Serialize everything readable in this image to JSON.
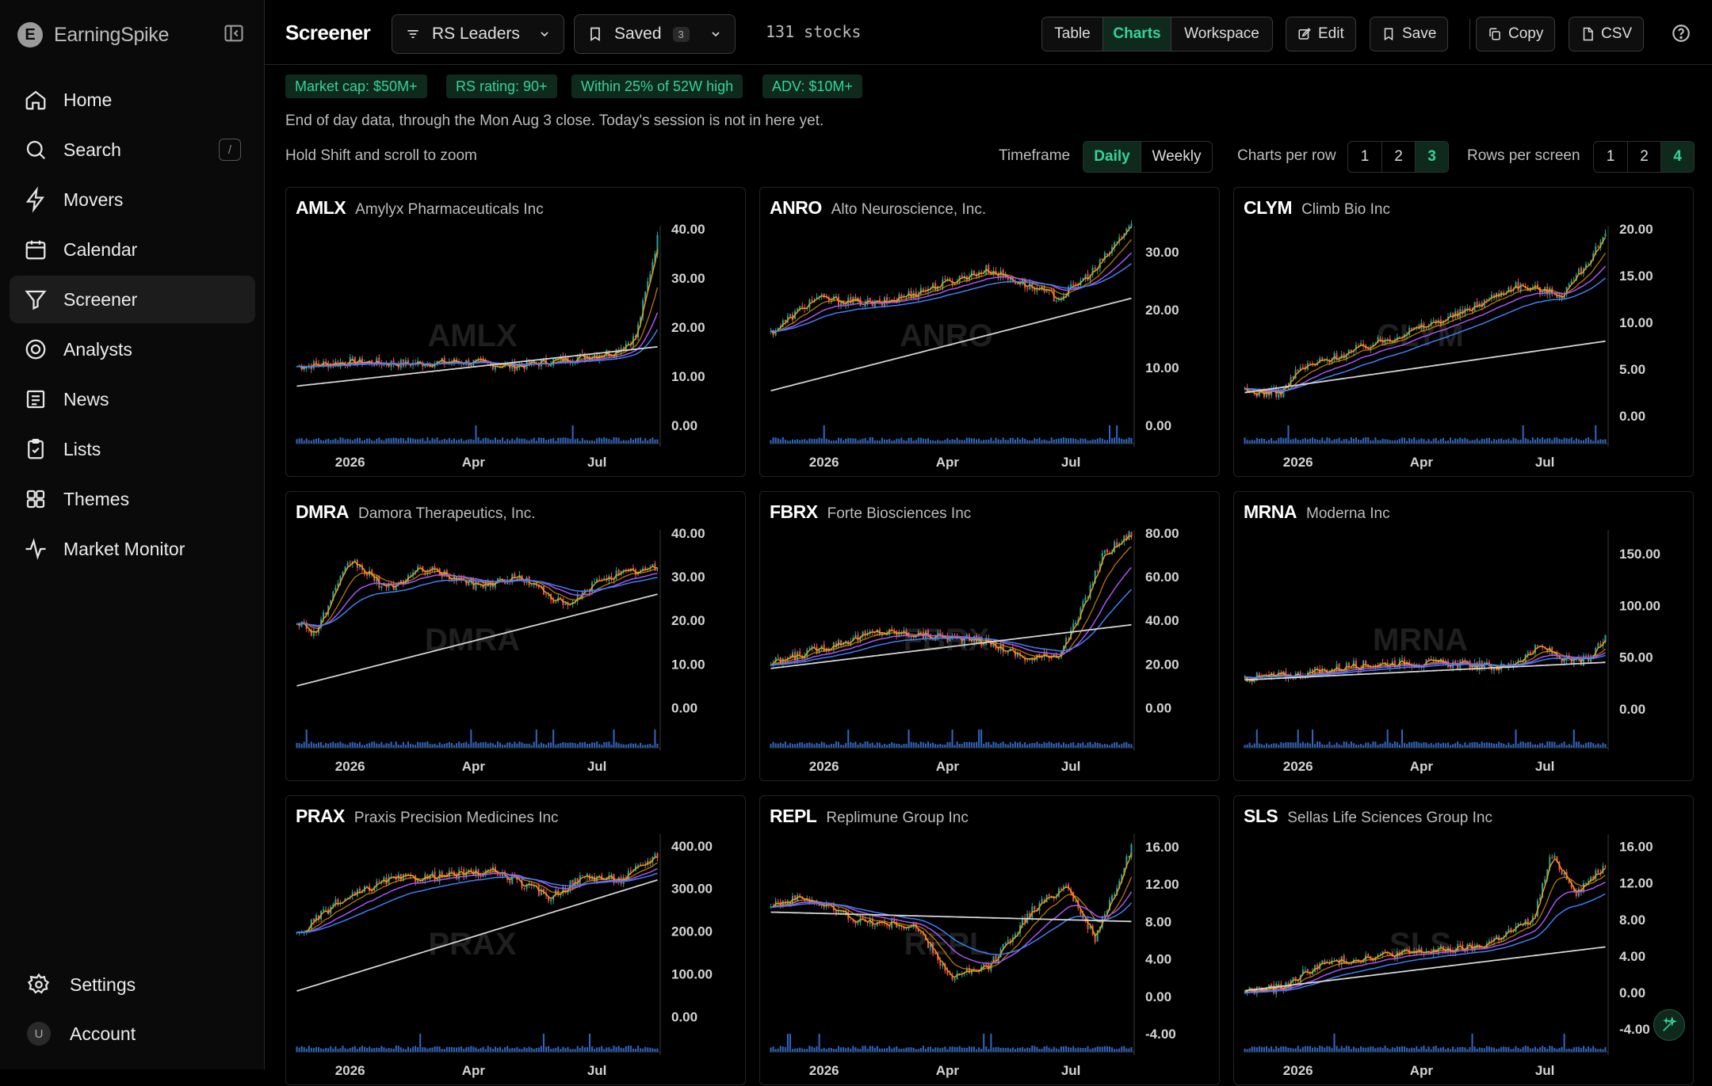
{
  "app": {
    "name": "EarningSpike",
    "logo_letter": "E"
  },
  "sidebar": {
    "items": [
      {
        "label": "Home",
        "icon": "home-icon"
      },
      {
        "label": "Search",
        "icon": "search-icon",
        "shortcut": "/"
      },
      {
        "label": "Movers",
        "icon": "bolt-icon"
      },
      {
        "label": "Calendar",
        "icon": "calendar-icon"
      },
      {
        "label": "Screener",
        "icon": "filter-icon",
        "active": true
      },
      {
        "label": "Analysts",
        "icon": "target-icon"
      },
      {
        "label": "News",
        "icon": "newspaper-icon"
      },
      {
        "label": "Lists",
        "icon": "clipboard-check-icon"
      },
      {
        "label": "Themes",
        "icon": "grid-icon"
      },
      {
        "label": "Market Monitor",
        "icon": "pulse-icon"
      }
    ],
    "bottom": [
      {
        "label": "Settings",
        "icon": "gear-icon"
      },
      {
        "label": "Account",
        "avatar": "U"
      }
    ]
  },
  "header": {
    "title": "Screener",
    "screen_select": "RS Leaders",
    "saved_label": "Saved",
    "saved_count": "3",
    "stock_count": "131 stocks",
    "views": [
      "Table",
      "Charts",
      "Workspace"
    ],
    "active_view": "Charts",
    "edit": "Edit",
    "save": "Save",
    "copy": "Copy",
    "csv": "CSV"
  },
  "filters": [
    "Market cap: $50M+",
    "RS rating: 90+",
    "Within 25% of 52W high",
    "ADV: $10M+"
  ],
  "data_note": "End of day data, through the Mon Aug 3 close. Today's session is not in here yet.",
  "zoom_hint": "Hold Shift and scroll to zoom",
  "controls": {
    "timeframe_label": "Timeframe",
    "timeframes": [
      "Daily",
      "Weekly"
    ],
    "active_timeframe": "Daily",
    "per_row_label": "Charts per row",
    "per_row_options": [
      "1",
      "2",
      "3"
    ],
    "per_row_active": "3",
    "rows_label": "Rows per screen",
    "rows_options": [
      "1",
      "2",
      "4"
    ],
    "rows_active": "4"
  },
  "colors": {
    "accent": "#34d399",
    "candle_up": "#26a69a",
    "candle_down": "#ef5350",
    "ma_fast": "#f59e0b",
    "ma_mid": "#a855f7",
    "ma_slow": "#3b82f6",
    "ma_long": "#d4d4d4",
    "volume": "#3b82f6"
  },
  "chart_data": [
    {
      "type": "candlestick",
      "symbol": "AMLX",
      "name": "Amylyx Pharmaceuticals Inc",
      "x_ticks": [
        "2026",
        "Apr",
        "Jul"
      ],
      "y_ticks": [
        "40.00",
        "30.00",
        "20.00",
        "10.00",
        "0.00"
      ],
      "ylim": [
        0,
        40
      ],
      "close_path": [
        [
          0,
          12
        ],
        [
          0.15,
          13
        ],
        [
          0.3,
          12.5
        ],
        [
          0.45,
          13
        ],
        [
          0.6,
          12
        ],
        [
          0.75,
          13.5
        ],
        [
          0.88,
          15
        ],
        [
          0.94,
          18
        ],
        [
          1.0,
          38
        ]
      ],
      "ma_long_range": [
        8,
        16
      ]
    },
    {
      "type": "candlestick",
      "symbol": "ANRO",
      "name": "Alto Neuroscience, Inc.",
      "x_ticks": [
        "2026",
        "Apr",
        "Jul"
      ],
      "y_ticks": [
        "30.00",
        "20.00",
        "10.00",
        "0.00"
      ],
      "ylim": [
        0,
        34
      ],
      "close_path": [
        [
          0,
          16
        ],
        [
          0.12,
          22
        ],
        [
          0.3,
          21
        ],
        [
          0.45,
          24
        ],
        [
          0.6,
          27
        ],
        [
          0.72,
          24
        ],
        [
          0.8,
          22
        ],
        [
          0.9,
          27
        ],
        [
          1.0,
          35
        ]
      ],
      "ma_long_range": [
        6,
        22
      ]
    },
    {
      "type": "candlestick",
      "symbol": "CLYM",
      "name": "Climb Bio Inc",
      "x_ticks": [
        "2026",
        "Apr",
        "Jul"
      ],
      "y_ticks": [
        "20.00",
        "15.00",
        "10.00",
        "5.00",
        "0.00"
      ],
      "ylim": [
        -1,
        20
      ],
      "close_path": [
        [
          0,
          2.5
        ],
        [
          0.1,
          2.5
        ],
        [
          0.15,
          5
        ],
        [
          0.3,
          7
        ],
        [
          0.45,
          9
        ],
        [
          0.6,
          11
        ],
        [
          0.75,
          14
        ],
        [
          0.88,
          13
        ],
        [
          1.0,
          19
        ]
      ],
      "ma_long_range": [
        2.5,
        8
      ]
    },
    {
      "type": "candlestick",
      "symbol": "DMRA",
      "name": "Damora Therapeutics, Inc.",
      "x_ticks": [
        "2026",
        "Apr",
        "Jul"
      ],
      "y_ticks": [
        "40.00",
        "30.00",
        "20.00",
        "10.00",
        "0.00"
      ],
      "ylim": [
        -5,
        40
      ],
      "close_path": [
        [
          0,
          20
        ],
        [
          0.05,
          17
        ],
        [
          0.15,
          34
        ],
        [
          0.25,
          27
        ],
        [
          0.35,
          32
        ],
        [
          0.5,
          28
        ],
        [
          0.62,
          30
        ],
        [
          0.75,
          23
        ],
        [
          0.85,
          30
        ],
        [
          1.0,
          32
        ]
      ],
      "ma_long_range": [
        5,
        26
      ]
    },
    {
      "type": "candlestick",
      "symbol": "FBRX",
      "name": "Forte Biosciences Inc",
      "x_ticks": [
        "2026",
        "Apr",
        "Jul"
      ],
      "y_ticks": [
        "80.00",
        "60.00",
        "40.00",
        "20.00",
        "0.00"
      ],
      "ylim": [
        -10,
        80
      ],
      "close_path": [
        [
          0,
          20
        ],
        [
          0.15,
          28
        ],
        [
          0.3,
          35
        ],
        [
          0.45,
          33
        ],
        [
          0.6,
          30
        ],
        [
          0.72,
          22
        ],
        [
          0.8,
          25
        ],
        [
          0.85,
          40
        ],
        [
          0.92,
          70
        ],
        [
          1.0,
          80
        ]
      ],
      "ma_long_range": [
        18,
        38
      ]
    },
    {
      "type": "candlestick",
      "symbol": "MRNA",
      "name": "Moderna Inc",
      "x_ticks": [
        "2026",
        "Apr",
        "Jul"
      ],
      "y_ticks": [
        "150.00",
        "100.00",
        "50.00",
        "0.00"
      ],
      "ylim": [
        -20,
        170
      ],
      "close_path": [
        [
          0,
          30
        ],
        [
          0.15,
          33
        ],
        [
          0.3,
          42
        ],
        [
          0.45,
          45
        ],
        [
          0.6,
          43
        ],
        [
          0.72,
          40
        ],
        [
          0.82,
          60
        ],
        [
          0.9,
          45
        ],
        [
          0.96,
          48
        ],
        [
          1.0,
          70
        ]
      ],
      "ma_long_range": [
        28,
        45
      ]
    },
    {
      "type": "candlestick",
      "symbol": "PRAX",
      "name": "Praxis Precision Medicines Inc",
      "x_ticks": [
        "2026",
        "Apr",
        "Jul"
      ],
      "y_ticks": [
        "400.00",
        "300.00",
        "200.00",
        "100.00",
        "0.00"
      ],
      "ylim": [
        -40,
        420
      ],
      "close_path": [
        [
          0,
          190
        ],
        [
          0.1,
          260
        ],
        [
          0.25,
          320
        ],
        [
          0.4,
          330
        ],
        [
          0.55,
          340
        ],
        [
          0.7,
          280
        ],
        [
          0.8,
          330
        ],
        [
          0.9,
          320
        ],
        [
          1.0,
          380
        ]
      ],
      "ma_long_range": [
        60,
        320
      ]
    },
    {
      "type": "candlestick",
      "symbol": "REPL",
      "name": "Replimune Group Inc",
      "x_ticks": [
        "2026",
        "Apr",
        "Jul"
      ],
      "y_ticks": [
        "16.00",
        "12.00",
        "8.00",
        "4.00",
        "0.00",
        "-4.00"
      ],
      "ylim": [
        -4,
        17
      ],
      "close_path": [
        [
          0,
          10
        ],
        [
          0.1,
          10.5
        ],
        [
          0.25,
          8
        ],
        [
          0.4,
          7.5
        ],
        [
          0.5,
          2
        ],
        [
          0.6,
          3
        ],
        [
          0.72,
          9
        ],
        [
          0.82,
          12
        ],
        [
          0.9,
          6
        ],
        [
          1.0,
          16
        ]
      ],
      "ma_long_range": [
        9,
        8
      ]
    },
    {
      "type": "candlestick",
      "symbol": "SLS",
      "name": "Sellas Life Sciences Group Inc",
      "x_ticks": [
        "2026",
        "Apr",
        "Jul"
      ],
      "y_ticks": [
        "16.00",
        "12.00",
        "8.00",
        "4.00",
        "0.00",
        "-4.00"
      ],
      "ylim": [
        -4.5,
        17
      ],
      "close_path": [
        [
          0,
          0.2
        ],
        [
          0.1,
          0.5
        ],
        [
          0.2,
          3
        ],
        [
          0.35,
          4
        ],
        [
          0.5,
          4.5
        ],
        [
          0.65,
          5
        ],
        [
          0.8,
          8
        ],
        [
          0.85,
          15
        ],
        [
          0.92,
          11
        ],
        [
          1.0,
          14
        ]
      ],
      "ma_long_range": [
        0.2,
        5
      ]
    }
  ]
}
